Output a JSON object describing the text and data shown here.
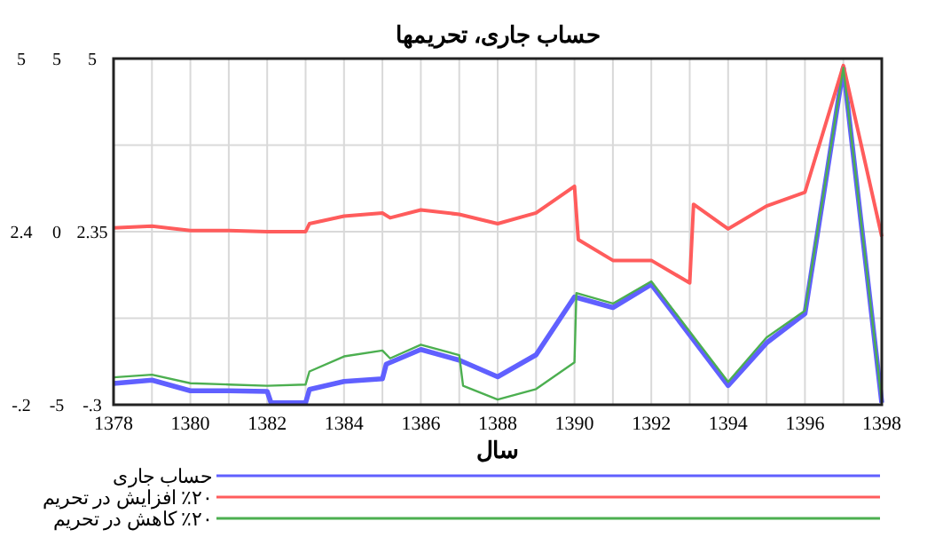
{
  "chart_data": {
    "type": "line",
    "title": "حساب جاری، تحریمها",
    "xlabel": "سال",
    "xlim": [
      1378,
      1398
    ],
    "xticks": [
      1378,
      {
        "value": 1379,
        "label": null
      },
      1380,
      {
        "value": 1381,
        "label": null
      },
      1382,
      {
        "value": 1383,
        "label": null
      },
      1384,
      {
        "value": 1385,
        "label": null
      },
      1386,
      {
        "value": 1387,
        "label": null
      },
      1388,
      {
        "value": 1389,
        "label": null
      },
      1390,
      {
        "value": 1391,
        "label": null
      },
      1392,
      {
        "value": 1393,
        "label": null
      },
      1394,
      {
        "value": 1395,
        "label": null
      },
      1396,
      {
        "value": 1397,
        "label": null
      },
      1398
    ],
    "ylim": [
      -0.2,
      5
    ],
    "yticks": [
      {
        "value": -0.2,
        "label": "-.2"
      },
      {
        "value": 1.1,
        "label": null
      },
      2.4,
      {
        "value": 3.7,
        "label": null
      },
      5
    ],
    "y2lim": [
      -5,
      5
    ],
    "y2ticks": [
      -5,
      0,
      5
    ],
    "y3lim": [
      -0.3,
      5
    ],
    "y3ticks": [
      {
        "value": -0.3,
        "label": "-.3"
      },
      2.35,
      5
    ],
    "grid": true,
    "legend": "bottom",
    "marker": "none",
    "line_style": "solid",
    "series": [
      {
        "name": "حساب جاری",
        "color": "#6060ff",
        "axis": "y",
        "x": [
          1378,
          1379,
          1380,
          1381,
          1382,
          1382.1,
          1383,
          1383.1,
          1384,
          1385,
          1385.1,
          1386,
          1387,
          1388,
          1389,
          1390,
          1391,
          1392,
          1394,
          1395,
          1396,
          1397,
          1398
        ],
        "values": [
          0.12,
          0.17,
          0.01,
          0.01,
          0,
          -0.17,
          -0.17,
          0.03,
          0.15,
          0.19,
          0.41,
          0.63,
          0.47,
          0.22,
          0.55,
          1.42,
          1.26,
          1.61,
          0.09,
          0.73,
          1.17,
          4.86,
          -0.17
        ]
      },
      {
        "name": "٪۲۰ افزایش در تحریم",
        "color": "#ff5c5c",
        "axis": "y2",
        "x": [
          1378,
          1379,
          1380,
          1381,
          1382,
          1383,
          1383.1,
          1384,
          1385,
          1385.2,
          1386,
          1387,
          1388,
          1389,
          1390,
          1390.1,
          1391,
          1392,
          1393,
          1393.1,
          1394,
          1395,
          1396,
          1397,
          1398
        ],
        "values": [
          0.11,
          0.16,
          0.03,
          0.03,
          0,
          0,
          0.23,
          0.45,
          0.54,
          0.4,
          0.63,
          0.5,
          0.23,
          0.54,
          1.31,
          -0.23,
          -0.83,
          -0.83,
          -1.48,
          0.79,
          0.08,
          0.74,
          1.14,
          4.8,
          -0.14
        ]
      },
      {
        "name": "٪۲۰ کاهش در تحریم",
        "color": "#4caf50",
        "axis": "y3",
        "x": [
          1378,
          1379,
          1380,
          1381,
          1382,
          1383,
          1383.1,
          1384,
          1385,
          1385.2,
          1386,
          1387,
          1387.1,
          1388,
          1389,
          1390,
          1390.05,
          1391,
          1392,
          1394,
          1395,
          1396,
          1397,
          1398
        ],
        "values": [
          0.12,
          0.16,
          0.03,
          0.01,
          -0.01,
          0.01,
          0.21,
          0.44,
          0.53,
          0.41,
          0.62,
          0.46,
          -0.01,
          -0.22,
          -0.06,
          0.35,
          1.41,
          1.25,
          1.59,
          0.05,
          0.73,
          1.14,
          4.86,
          -0.26
        ]
      }
    ]
  }
}
